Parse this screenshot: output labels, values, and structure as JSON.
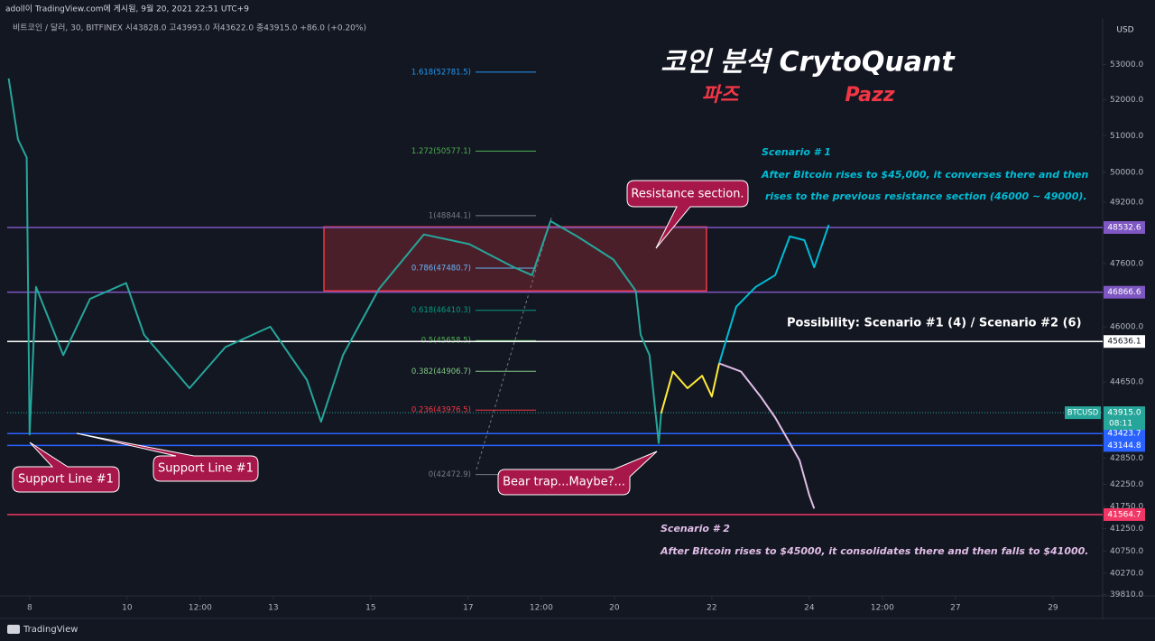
{
  "header": "adoll이 TradingView.com에 게시됨, 9월 20, 2021 22:51 UTC+9",
  "symbol_info": "비트코인 / 달러, 30, BITFINEX  시43828.0 고43993.0 저43622.0 종43915.0 +86.0 (+0.20%)",
  "brand": "TradingView",
  "chart_data": {
    "type": "line",
    "title": "코인 분석 CrytoQuant",
    "subtitle_ko": "파즈",
    "subtitle_en": "Pazz",
    "currency": "USD",
    "log_scale": true,
    "grid": false,
    "xlim": [
      7.54,
      30.02
    ],
    "xticks": [
      8,
      10,
      {
        "value": 11.5,
        "label": "12:00"
      },
      13,
      15,
      17,
      {
        "value": 18.5,
        "label": "12:00"
      },
      20,
      22,
      24,
      {
        "value": 25.5,
        "label": "12:00"
      },
      27,
      29
    ],
    "ylim": [
      39780,
      54290
    ],
    "yticks": [
      {
        "value": 53000,
        "label": "53000.0"
      },
      {
        "value": 52000,
        "label": "52000.0"
      },
      {
        "value": 51000,
        "label": "51000.0"
      },
      {
        "value": 50000,
        "label": "50000.0"
      },
      {
        "value": 49200,
        "label": "49200.0"
      },
      {
        "value": 47600,
        "label": "47600.0"
      },
      {
        "value": 46000,
        "label": "46000.0"
      },
      {
        "value": 44650,
        "label": "44650.0"
      },
      {
        "value": 42850,
        "label": "42850.0"
      },
      {
        "value": 42250,
        "label": "42250.0"
      },
      {
        "value": 41750,
        "label": "41750.0"
      },
      {
        "value": 41250,
        "label": "41250.0"
      },
      {
        "value": 40750,
        "label": "40750.0"
      },
      {
        "value": 40270,
        "label": "40270.0"
      },
      {
        "value": 39810,
        "label": "39810.0"
      }
    ],
    "series": [
      {
        "color": "#26a69a",
        "x": [
          7.57,
          7.76,
          7.94,
          8.0,
          8.13,
          8.69,
          9.24,
          9.98,
          10.35,
          11.28,
          12.02,
          12.94,
          13.69,
          13.98,
          14.43,
          15.17,
          16.09,
          17.02,
          17.94,
          18.31,
          18.69,
          19.24,
          19.98,
          20.44,
          20.54,
          20.72,
          20.91,
          20.96
        ],
        "values": [
          52600,
          50900,
          50400,
          43400,
          47000,
          45300,
          46700,
          47100,
          45800,
          44500,
          45500,
          46000,
          44700,
          43700,
          45300,
          46950,
          48350,
          48100,
          47500,
          47300,
          48700,
          48300,
          47700,
          46900,
          45800,
          45300,
          43200,
          43900
        ]
      },
      {
        "color": "#ffeb3b",
        "x": [
          20.96,
          21.2,
          21.5,
          21.8,
          22.0,
          22.15
        ],
        "values": [
          43900,
          44900,
          44500,
          44800,
          44300,
          45100
        ]
      },
      {
        "color": "#00bcd4",
        "x": [
          22.15,
          22.5,
          22.9,
          23.3,
          23.6,
          23.9,
          24.1,
          24.4
        ],
        "values": [
          45100,
          46500,
          47000,
          47300,
          48300,
          48200,
          47500,
          48600
        ]
      },
      {
        "color": "#e1bee7",
        "x": [
          22.15,
          22.6,
          23.0,
          23.3,
          23.6,
          23.8,
          24.0,
          24.1
        ],
        "values": [
          45100,
          44900,
          44300,
          43800,
          43200,
          42800,
          42000,
          41700
        ]
      }
    ],
    "levels": [
      {
        "value": 48532.6,
        "color": "#7e57c2"
      },
      {
        "value": 46866.6,
        "color": "#7e57c2"
      },
      {
        "value": 45636.1,
        "color": "#ffffff"
      },
      {
        "value": 43423.7,
        "color": "#2962ff"
      },
      {
        "value": 43144.8,
        "color": "#2962ff"
      },
      {
        "value": 41564.7,
        "color": "#f23665"
      }
    ],
    "current": {
      "value": 43915.0,
      "label": "43915.0",
      "symbol": "BTCUSD",
      "countdown": "08:11",
      "color": "#26a69a"
    },
    "fib": [
      {
        "value": 52781.5,
        "label": "1.618(52781.5)",
        "color": "#2196f3"
      },
      {
        "value": 50577.1,
        "label": "1.272(50577.1)",
        "color": "#4caf50"
      },
      {
        "value": 48844.1,
        "label": "1(48844.1)",
        "color": "#787b86"
      },
      {
        "value": 47480.7,
        "label": "0.786(47480.7)",
        "color": "#64b5f6"
      },
      {
        "value": 46410.3,
        "label": "0.618(46410.3)",
        "color": "#089981"
      },
      {
        "value": 45658.5,
        "label": "0.5(45658.5)",
        "color": "#4caf50"
      },
      {
        "value": 44906.7,
        "label": "0.382(44906.7)",
        "color": "#81c784"
      },
      {
        "value": 43976.5,
        "label": "0.236(43976.5)",
        "color": "#f23645"
      },
      {
        "value": 42472.9,
        "label": "0(42472.9)",
        "color": "#787b86"
      }
    ],
    "resistance_zone": {
      "x": [
        14.04,
        21.89
      ],
      "y": [
        46900,
        48550
      ]
    },
    "annotations": {
      "scenario1_title": "Scenario # 1",
      "scenario1_line1": "After Bitcoin rises to $45,000, it converses there and then",
      "scenario1_line2": "rises to the previous resistance section (46000 ~ 49000).",
      "scenario2_title": "Scenario # 2",
      "scenario2_line1": "After Bitcoin rises to $45000, it consolidates there and then falls to $41000.",
      "possibility": "Possibility: Scenario #1 (4) / Scenario #2 (6)",
      "resistance": "Resistance section.",
      "support_left": "Support Line #1",
      "support_right": "Support Line #1",
      "bear_trap": "Bear trap...Maybe?..."
    }
  }
}
